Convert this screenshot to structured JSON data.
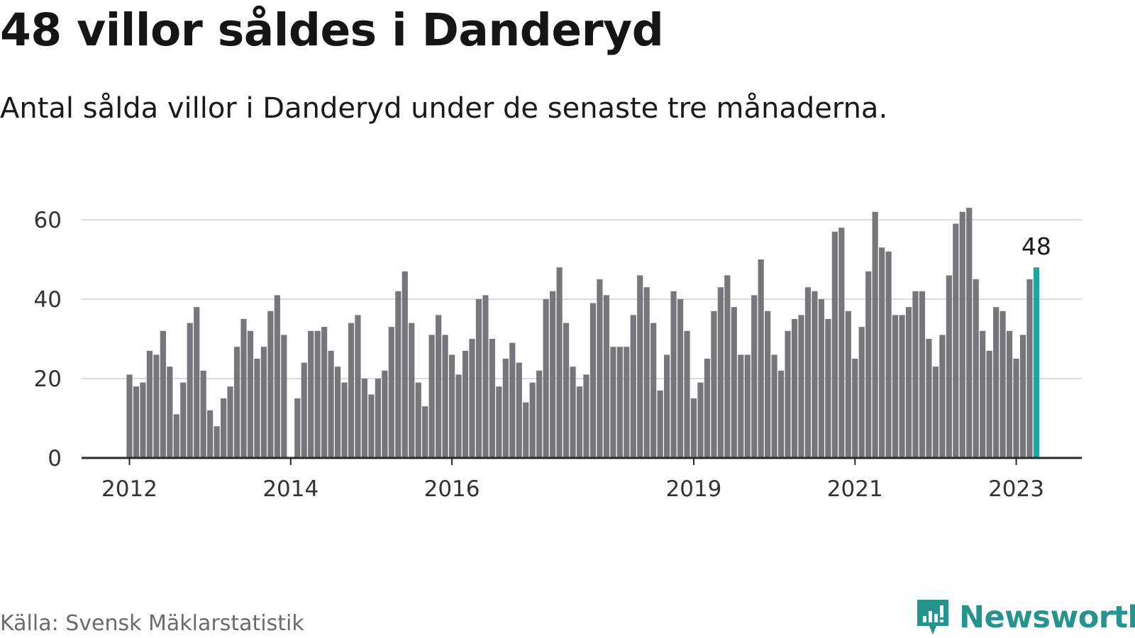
{
  "title": "48 villor såldes i Danderyd",
  "subtitle": "Antal sålda villor i Danderyd under de senaste tre månaderna.",
  "source": "Källa: Svensk Mäklarstatistik",
  "brand": {
    "name": "Newsworthy",
    "color": "#26938c"
  },
  "chart_data": {
    "type": "bar",
    "title": "48 villor såldes i Danderyd",
    "xlabel": "",
    "ylabel": "",
    "ylim": [
      0,
      65
    ],
    "yticks": [
      0,
      20,
      40,
      60
    ],
    "grid": true,
    "bar_color": "#77767b",
    "highlight_color": "#1ea79e",
    "start_year": 2012,
    "start_month": 1,
    "xtick_labels": [
      {
        "label": "2012",
        "index": 0
      },
      {
        "label": "2014",
        "index": 24
      },
      {
        "label": "2016",
        "index": 48
      },
      {
        "label": "2019",
        "index": 84
      },
      {
        "label": "2021",
        "index": 108
      },
      {
        "label": "2023",
        "index": 132
      }
    ],
    "values": [
      21,
      18,
      19,
      27,
      26,
      32,
      23,
      11,
      19,
      34,
      38,
      22,
      12,
      8,
      15,
      18,
      28,
      35,
      32,
      25,
      28,
      37,
      41,
      31,
      0,
      15,
      24,
      32,
      32,
      33,
      27,
      23,
      19,
      34,
      36,
      20,
      16,
      20,
      22,
      33,
      42,
      47,
      34,
      19,
      13,
      31,
      36,
      31,
      26,
      21,
      27,
      30,
      40,
      41,
      30,
      18,
      25,
      29,
      24,
      14,
      19,
      22,
      40,
      42,
      48,
      34,
      23,
      18,
      21,
      39,
      45,
      41,
      28,
      28,
      28,
      36,
      46,
      43,
      34,
      17,
      26,
      42,
      40,
      32,
      15,
      19,
      25,
      37,
      43,
      46,
      38,
      26,
      26,
      41,
      50,
      37,
      26,
      22,
      32,
      35,
      36,
      43,
      42,
      40,
      35,
      57,
      58,
      37,
      25,
      33,
      47,
      62,
      53,
      52,
      36,
      36,
      38,
      42,
      42,
      30,
      23,
      31,
      46,
      59,
      62,
      63,
      45,
      32,
      27,
      38,
      37,
      32,
      25,
      31,
      45,
      48
    ],
    "highlight_index": 135,
    "highlight_label": "48"
  }
}
